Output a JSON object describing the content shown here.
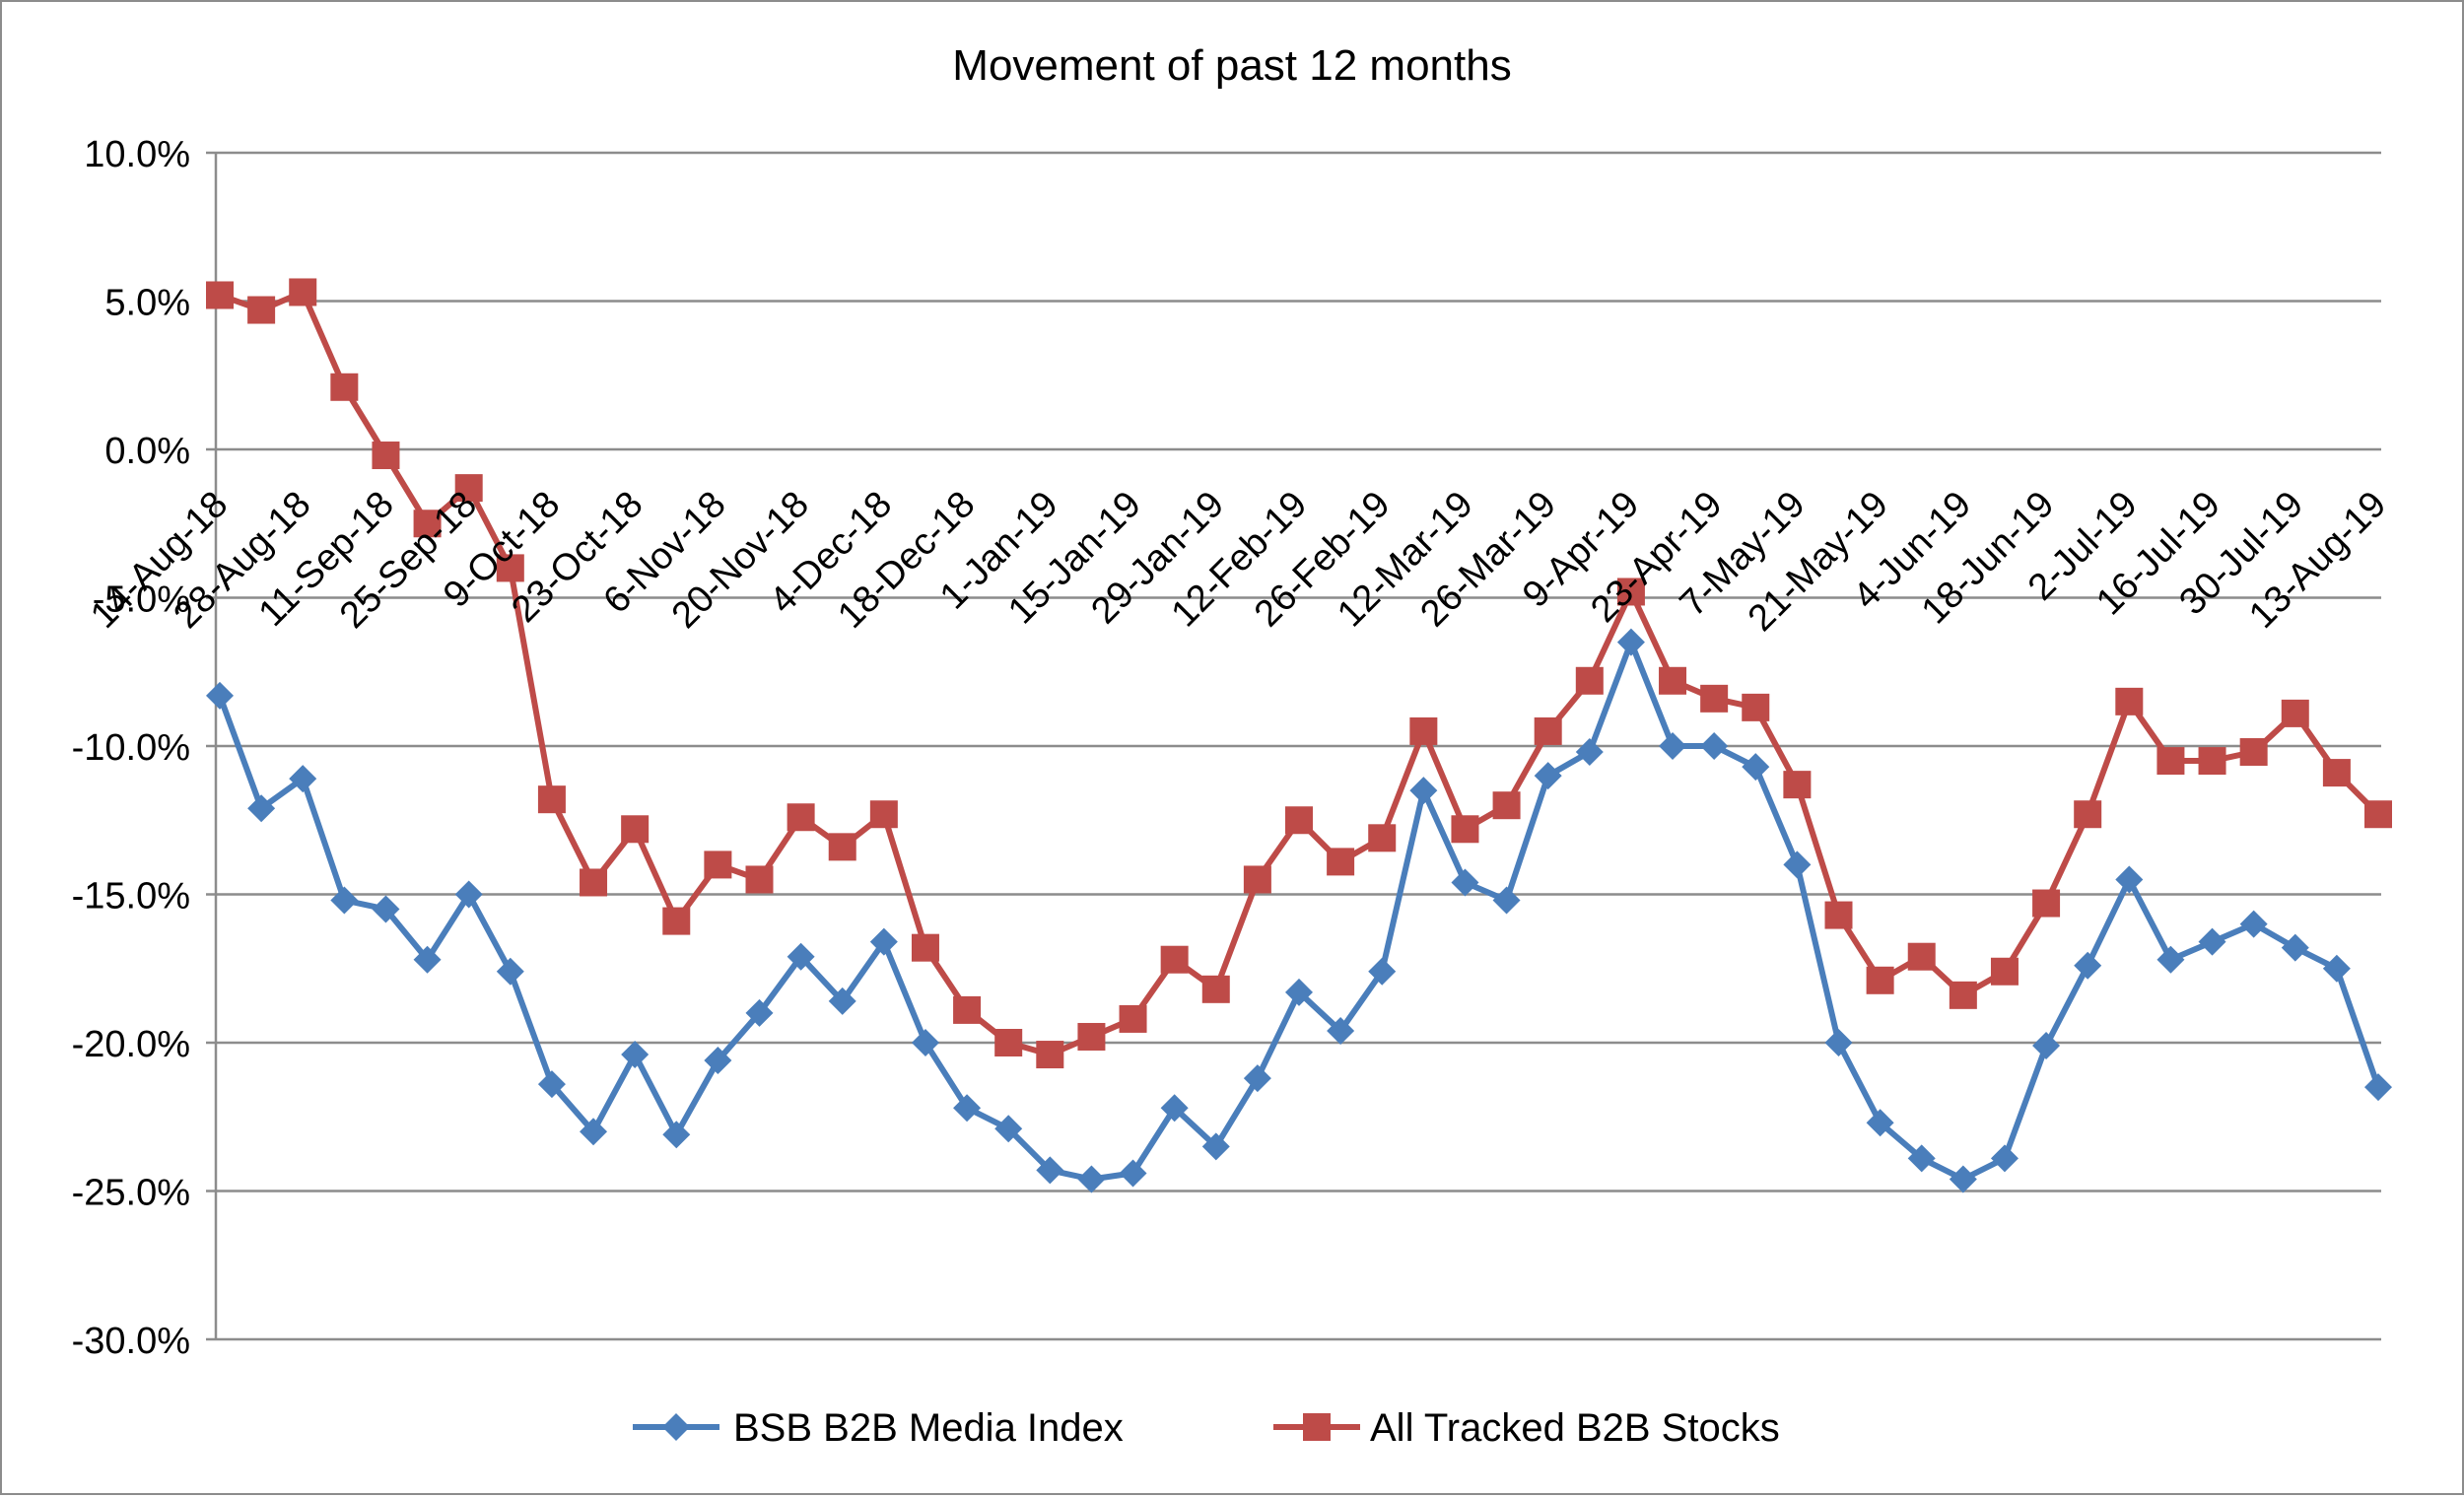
{
  "chart_data": {
    "type": "line",
    "title": "Movement of past 12 months",
    "x": [
      "14-Aug-18",
      "21-Aug-18",
      "28-Aug-18",
      "4-Sep-18",
      "11-Sep-18",
      "18-Sep-18",
      "25-Sep-18",
      "2-Oct-18",
      "9-Oct-18",
      "16-Oct-18",
      "23-Oct-18",
      "30-Oct-18",
      "6-Nov-18",
      "13-Nov-18",
      "20-Nov-18",
      "27-Nov-18",
      "4-Dec-18",
      "11-Dec-18",
      "18-Dec-18",
      "25-Dec-18",
      "1-Jan-19",
      "8-Jan-19",
      "15-Jan-19",
      "22-Jan-19",
      "29-Jan-19",
      "5-Feb-19",
      "12-Feb-19",
      "19-Feb-19",
      "26-Feb-19",
      "5-Mar-19",
      "12-Mar-19",
      "19-Mar-19",
      "26-Mar-19",
      "2-Apr-19",
      "9-Apr-19",
      "16-Apr-19",
      "23-Apr-19",
      "30-Apr-19",
      "7-May-19",
      "14-May-19",
      "21-May-19",
      "28-May-19",
      "4-Jun-19",
      "11-Jun-19",
      "18-Jun-19",
      "25-Jun-19",
      "2-Jul-19",
      "9-Jul-19",
      "16-Jul-19",
      "23-Jul-19",
      "30-Jul-19",
      "6-Aug-19",
      "13-Aug-19"
    ],
    "tick_labels": [
      "14-Aug-18",
      "28-Aug-18",
      "11-Sep-18",
      "25-Sep-18",
      "9-Oct-18",
      "23-Oct-18",
      "6-Nov-18",
      "20-Nov-18",
      "4-Dec-18",
      "18-Dec-18",
      "1-Jan-19",
      "15-Jan-19",
      "29-Jan-19",
      "12-Feb-19",
      "26-Feb-19",
      "12-Mar-19",
      "26-Mar-19",
      "9-Apr-19",
      "23-Apr-19",
      "7-May-19",
      "21-May-19",
      "4-Jun-19",
      "18-Jun-19",
      "2-Jul-19",
      "16-Jul-19",
      "30-Jul-19",
      "13-Aug-19"
    ],
    "series": [
      {
        "name": "BSB B2B Media Index",
        "color": "#4a7ebb",
        "marker": "diamond",
        "values": [
          -8.3,
          -12.1,
          -11.1,
          -15.2,
          -15.5,
          -17.2,
          -15.0,
          -17.6,
          -21.4,
          -23.0,
          -20.4,
          -23.1,
          -20.6,
          -19.0,
          -17.1,
          -18.6,
          -16.6,
          -20.0,
          -22.2,
          -22.9,
          -24.3,
          -24.6,
          -24.4,
          -22.2,
          -23.5,
          -21.2,
          -18.3,
          -19.6,
          -17.6,
          -11.5,
          -14.6,
          -15.2,
          -11.0,
          -10.2,
          -6.5,
          -10.0,
          -10.0,
          -10.7,
          -14.0,
          -20.0,
          -22.7,
          -23.9,
          -24.6,
          -23.9,
          -20.1,
          -17.4,
          -14.5,
          -17.2,
          -16.6,
          -16.0,
          -16.8,
          -17.5,
          -21.5
        ]
      },
      {
        "name": "All Tracked B2B Stocks",
        "color": "#be4b48",
        "marker": "square",
        "values": [
          5.2,
          4.7,
          5.3,
          2.1,
          -0.2,
          -2.5,
          -1.3,
          -4.0,
          -11.8,
          -14.6,
          -12.8,
          -15.9,
          -14.0,
          -14.5,
          -12.4,
          -13.4,
          -12.3,
          -16.8,
          -18.9,
          -20.0,
          -20.4,
          -19.8,
          -19.2,
          -17.2,
          -18.2,
          -14.5,
          -12.5,
          -13.9,
          -13.1,
          -9.5,
          -12.8,
          -12.0,
          -9.5,
          -7.8,
          -4.8,
          -7.8,
          -8.4,
          -8.7,
          -11.3,
          -15.7,
          -17.9,
          -17.1,
          -18.4,
          -17.6,
          -15.3,
          -12.3,
          -8.5,
          -10.5,
          -10.5,
          -10.2,
          -8.9,
          -10.9,
          -12.3
        ]
      }
    ],
    "ylim": [
      -30,
      10
    ],
    "yticks": [
      10,
      5,
      0,
      -5,
      -10,
      -15,
      -20,
      -25,
      -30
    ],
    "ytick_labels": [
      "10.0%",
      "5.0%",
      "0.0%",
      "-5.0%",
      "-10.0%",
      "-15.0%",
      "-20.0%",
      "-25.0%",
      "-30.0%"
    ],
    "grid": true,
    "legend_position": "bottom",
    "xlabel": "",
    "ylabel": ""
  }
}
